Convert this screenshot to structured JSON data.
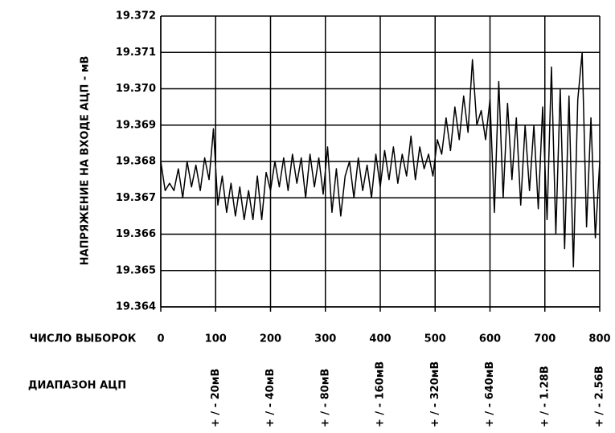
{
  "chart_data": {
    "type": "line",
    "y_label": "НАПРЯЖЕНИЕ НА ВХОДЕ АЦП  -  мВ",
    "x_label": "ЧИСЛО ВЫБОРОК",
    "range_title": "ДИАПАЗОН АЦП",
    "range_labels": [
      {
        "x": 100,
        "text": "+ / - 20мВ"
      },
      {
        "x": 200,
        "text": "+ / - 40мВ"
      },
      {
        "x": 300,
        "text": "+ / - 80мВ"
      },
      {
        "x": 400,
        "text": "+ / - 160мВ"
      },
      {
        "x": 500,
        "text": "+ / - 320мВ"
      },
      {
        "x": 600,
        "text": "+ / - 640мВ"
      },
      {
        "x": 700,
        "text": "+ / - 1.28В"
      },
      {
        "x": 800,
        "text": "+ / - 2.56В"
      }
    ],
    "x": [
      0,
      8,
      16,
      24,
      32,
      40,
      48,
      56,
      64,
      72,
      80,
      88,
      96,
      104,
      112,
      120,
      128,
      136,
      144,
      152,
      160,
      168,
      176,
      184,
      192,
      200,
      208,
      216,
      224,
      232,
      240,
      248,
      256,
      264,
      272,
      280,
      288,
      296,
      304,
      312,
      320,
      328,
      336,
      344,
      352,
      360,
      368,
      376,
      384,
      392,
      400,
      408,
      416,
      424,
      432,
      440,
      448,
      456,
      464,
      472,
      480,
      488,
      496,
      504,
      512,
      520,
      528,
      536,
      544,
      552,
      560,
      568,
      576,
      584,
      592,
      600,
      608,
      616,
      624,
      632,
      640,
      648,
      656,
      664,
      672,
      680,
      688,
      696,
      704,
      712,
      720,
      728,
      736,
      744,
      752,
      760,
      768,
      776,
      784,
      792,
      800
    ],
    "series": [
      {
        "color": "#000000",
        "values": [
          19.368,
          19.3672,
          19.3674,
          19.3672,
          19.3678,
          19.367,
          19.368,
          19.3673,
          19.3679,
          19.3672,
          19.3681,
          19.3675,
          19.3689,
          19.3668,
          19.3676,
          19.3666,
          19.3674,
          19.3665,
          19.3673,
          19.3664,
          19.3672,
          19.3664,
          19.3676,
          19.3664,
          19.3677,
          19.3672,
          19.368,
          19.3673,
          19.3681,
          19.3672,
          19.3682,
          19.3674,
          19.3681,
          19.367,
          19.3682,
          19.3673,
          19.3681,
          19.3671,
          19.3684,
          19.3666,
          19.3678,
          19.3665,
          19.3676,
          19.368,
          19.367,
          19.3681,
          19.3672,
          19.3679,
          19.367,
          19.3682,
          19.3673,
          19.3683,
          19.3675,
          19.3684,
          19.3674,
          19.3682,
          19.3676,
          19.3687,
          19.3675,
          19.3684,
          19.3678,
          19.3682,
          19.3676,
          19.3686,
          19.3682,
          19.3692,
          19.3683,
          19.3695,
          19.3686,
          19.3698,
          19.3688,
          19.3708,
          19.369,
          19.3694,
          19.3686,
          19.3697,
          19.3666,
          19.3702,
          19.367,
          19.3696,
          19.3675,
          19.3692,
          19.3668,
          19.369,
          19.3672,
          19.369,
          19.3667,
          19.3695,
          19.3664,
          19.3706,
          19.366,
          19.37,
          19.3656,
          19.3698,
          19.3651,
          19.3697,
          19.371,
          19.3662,
          19.3692,
          19.3659,
          19.368
        ]
      }
    ],
    "xlim": [
      0,
      800
    ],
    "ylim": [
      19.364,
      19.372
    ],
    "xticks": [
      0,
      100,
      200,
      300,
      400,
      500,
      600,
      700,
      800
    ],
    "yticks": [
      19.364,
      19.365,
      19.366,
      19.367,
      19.368,
      19.369,
      {
        "value": 19.37,
        "label": "19.370"
      },
      19.371,
      19.372
    ],
    "grid": true
  }
}
